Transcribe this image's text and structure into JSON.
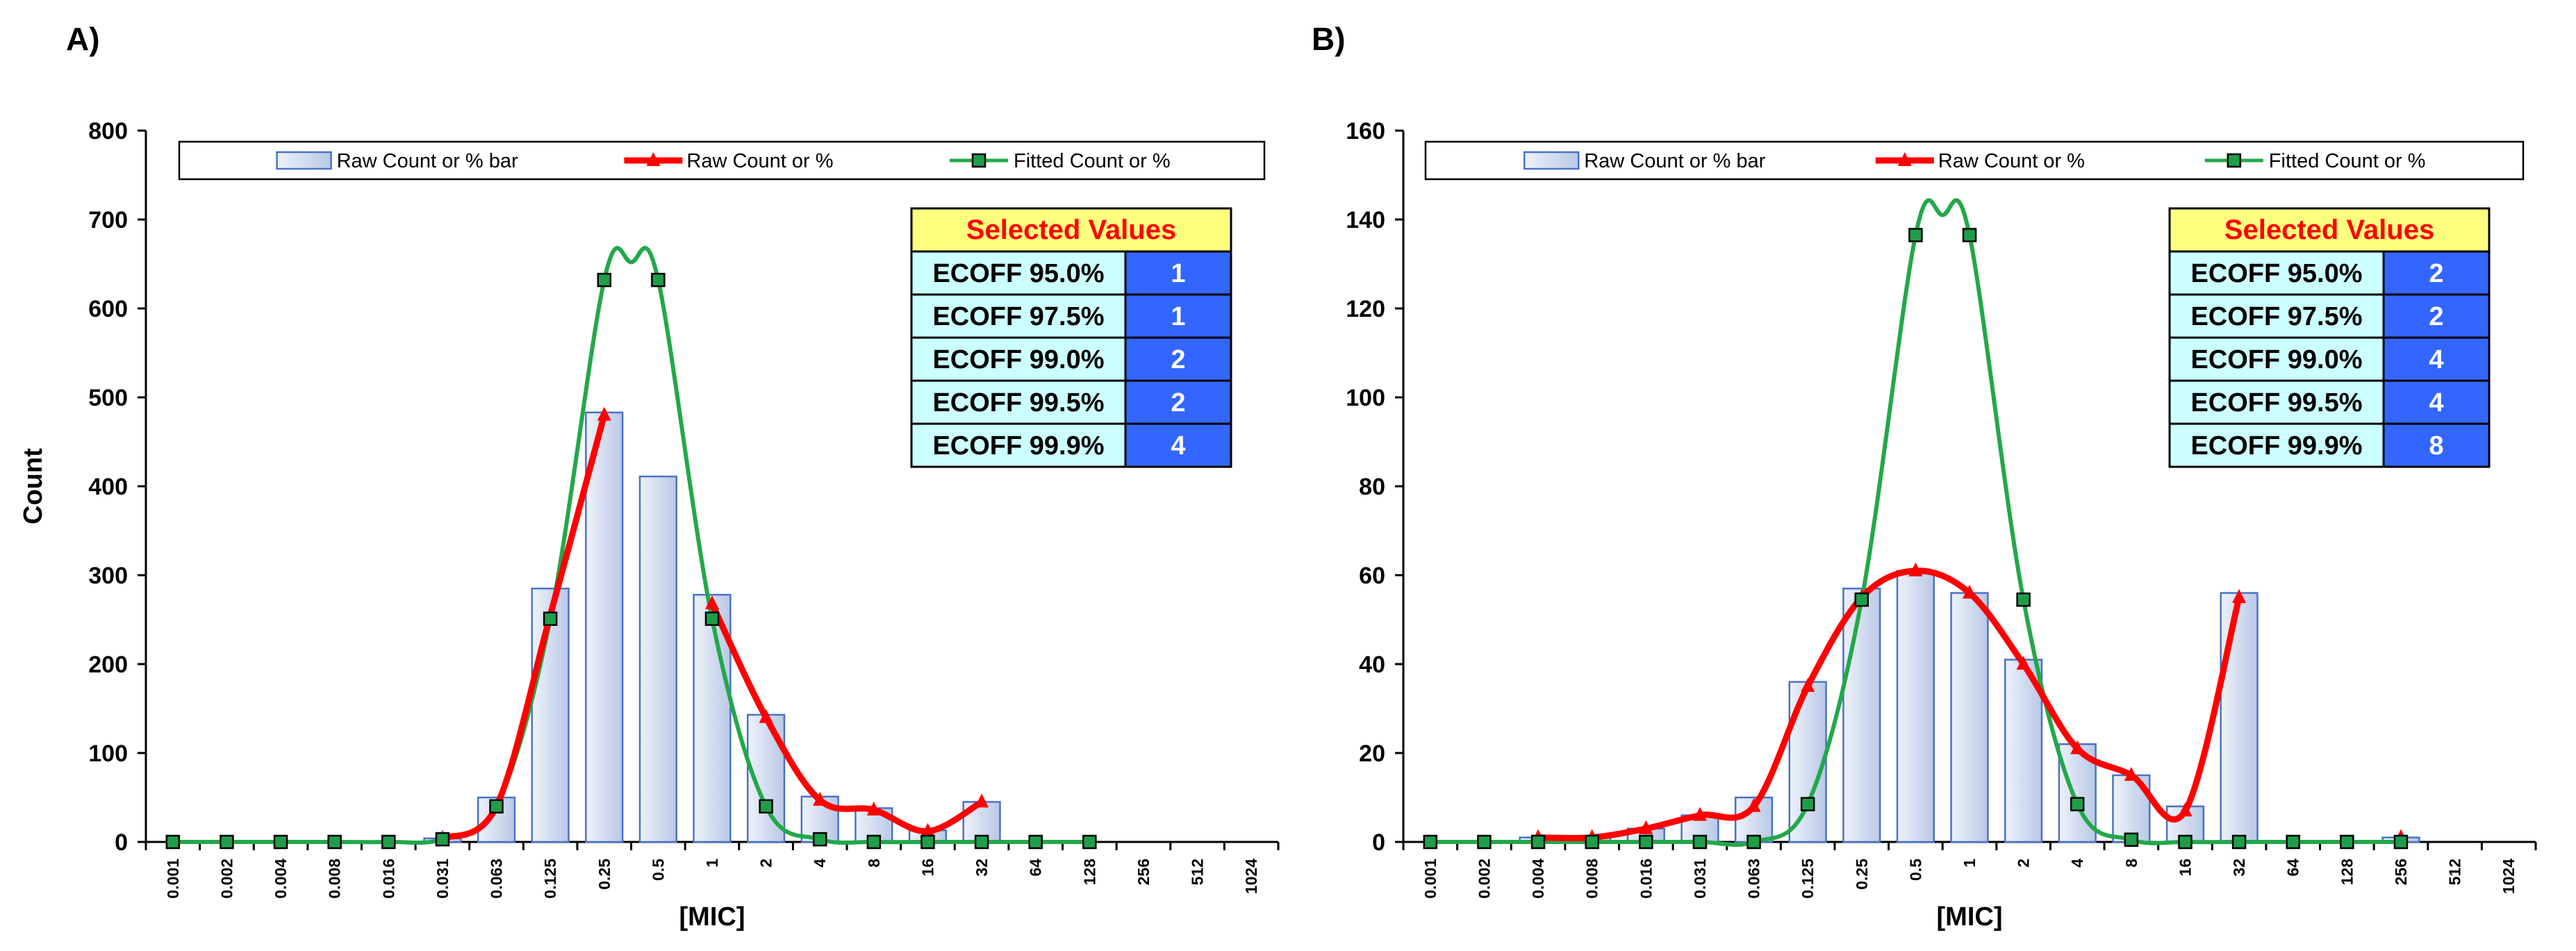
{
  "colors": {
    "bar_fill_light": "#eef2fa",
    "bar_fill_dark": "#b8c8e6",
    "bar_stroke": "#4a72c4",
    "raw_line": "#ff0000",
    "fit_line": "#22a84a",
    "fit_marker": "#1f9e4a",
    "table_header_bg": "#ffff7f",
    "table_label_bg": "#ccffff",
    "table_value_bg": "#3366ff"
  },
  "chart_data": [
    {
      "panel_label": "A)",
      "type": "bar",
      "xlabel": "[MIC]",
      "ylabel": "Count",
      "ylim": [
        0,
        800
      ],
      "yticks": [
        "0",
        "100",
        "200",
        "300",
        "400",
        "500",
        "600",
        "700",
        "800"
      ],
      "categories": [
        "0.001",
        "0.002",
        "0.004",
        "0.008",
        "0.016",
        "0.031",
        "0.063",
        "0.125",
        "0.25",
        "0.5",
        "1",
        "2",
        "4",
        "8",
        "16",
        "32",
        "64",
        "128",
        "256",
        "512",
        "1024"
      ],
      "series": [
        {
          "name": "Raw Count or % bar",
          "kind": "bar",
          "values": [
            0,
            0,
            0,
            0,
            0,
            4,
            50,
            285,
            483,
            411,
            278,
            143,
            51,
            38,
            13,
            45,
            null,
            null,
            null,
            null,
            null
          ]
        },
        {
          "name": "Raw Count or %",
          "kind": "line",
          "values": [
            null,
            null,
            null,
            null,
            null,
            4,
            40,
            255,
            480,
            null,
            268,
            140,
            47,
            36,
            12,
            45,
            null,
            null,
            null,
            null,
            null
          ]
        },
        {
          "name": "Fitted Count or %",
          "kind": "line",
          "values": [
            0,
            0,
            0,
            0,
            0,
            3,
            40,
            251,
            632,
            632,
            251,
            40,
            3,
            0,
            0,
            0,
            0,
            0,
            null,
            null,
            null
          ],
          "peak": {
            "x": 8.5,
            "y": 652
          }
        }
      ],
      "legend": [
        "Raw Count or % bar",
        "Raw Count or %",
        "Fitted Count or %"
      ],
      "legend_position": "top",
      "table": {
        "title": "Selected Values",
        "rows": [
          {
            "label": "ECOFF 95.0%",
            "value": "1"
          },
          {
            "label": "ECOFF 97.5%",
            "value": "1"
          },
          {
            "label": "ECOFF 99.0%",
            "value": "2"
          },
          {
            "label": "ECOFF 99.5%",
            "value": "2"
          },
          {
            "label": "ECOFF 99.9%",
            "value": "4"
          }
        ]
      }
    },
    {
      "panel_label": "B)",
      "type": "bar",
      "xlabel": "[MIC]",
      "ylabel": "",
      "ylim": [
        0,
        160
      ],
      "yticks": [
        "0",
        "20",
        "40",
        "60",
        "80",
        "100",
        "120",
        "140",
        "160"
      ],
      "categories": [
        "0.001",
        "0.002",
        "0.004",
        "0.008",
        "0.016",
        "0.031",
        "0.063",
        "0.125",
        "0.25",
        "0.5",
        "1",
        "2",
        "4",
        "8",
        "16",
        "32",
        "64",
        "128",
        "256",
        "512",
        "1024"
      ],
      "series": [
        {
          "name": "Raw Count or % bar",
          "kind": "bar",
          "values": [
            0,
            0,
            1,
            1,
            3,
            6,
            10,
            36,
            57,
            61,
            56,
            41,
            22,
            15,
            8,
            56,
            0,
            0,
            1,
            null,
            null
          ]
        },
        {
          "name": "Raw Count or %",
          "kind": "line",
          "values": [
            null,
            null,
            1,
            1,
            3,
            6,
            8,
            35,
            55,
            61,
            56,
            40,
            21,
            15,
            7,
            55,
            null,
            null,
            1,
            null,
            null
          ]
        },
        {
          "name": "Fitted Count or %",
          "kind": "line",
          "values": [
            0,
            0,
            0,
            0,
            0,
            0,
            0,
            8.5,
            54.5,
            136.5,
            136.5,
            54.5,
            8.5,
            0.5,
            0,
            0,
            0,
            0,
            0,
            null,
            null
          ],
          "peak": {
            "x": 9.5,
            "y": 141
          }
        }
      ],
      "legend": [
        "Raw Count or % bar",
        "Raw Count or %",
        "Fitted Count or %"
      ],
      "legend_position": "top",
      "table": {
        "title": "Selected Values",
        "rows": [
          {
            "label": "ECOFF 95.0%",
            "value": "2"
          },
          {
            "label": "ECOFF 97.5%",
            "value": "2"
          },
          {
            "label": "ECOFF 99.0%",
            "value": "4"
          },
          {
            "label": "ECOFF 99.5%",
            "value": "4"
          },
          {
            "label": "ECOFF 99.9%",
            "value": "8"
          }
        ]
      }
    }
  ]
}
